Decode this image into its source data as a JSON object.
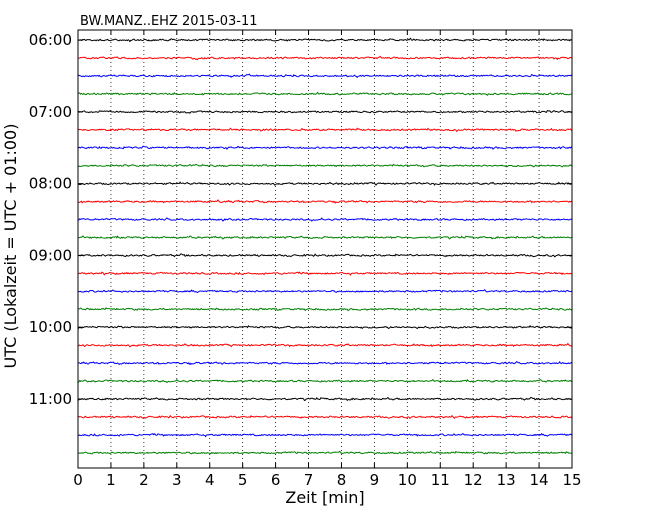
{
  "chart_data": {
    "type": "line",
    "title": "BW.MANZ..EHZ 2015-03-11",
    "xlabel": "Zeit  [min]",
    "ylabel": "UTC (Lokalzeit = UTC + 01:00)",
    "xlim": [
      0,
      15
    ],
    "x_ticks": [
      0,
      1,
      2,
      3,
      4,
      5,
      6,
      7,
      8,
      9,
      10,
      11,
      12,
      13,
      14,
      15
    ],
    "x_tick_labels": [
      "0",
      "1",
      "2",
      "3",
      "4",
      "5",
      "6",
      "7",
      "8",
      "9",
      "10",
      "11",
      "12",
      "13",
      "14",
      "15"
    ],
    "y_tick_labels": [
      "06:00",
      "07:00",
      "08:00",
      "09:00",
      "10:00",
      "11:00"
    ],
    "grid": "vertical-dotted",
    "trace_interval_minutes": 15,
    "trace_start_times": [
      "06:00",
      "06:15",
      "06:30",
      "06:45",
      "07:00",
      "07:15",
      "07:30",
      "07:45",
      "08:00",
      "08:15",
      "08:30",
      "08:45",
      "09:00",
      "09:15",
      "09:30",
      "09:45",
      "10:00",
      "10:15",
      "10:30",
      "10:45",
      "11:00",
      "11:15",
      "11:30",
      "11:45"
    ],
    "trace_colors": [
      "#000000",
      "#ff0000",
      "#0000ff",
      "#008000"
    ]
  }
}
